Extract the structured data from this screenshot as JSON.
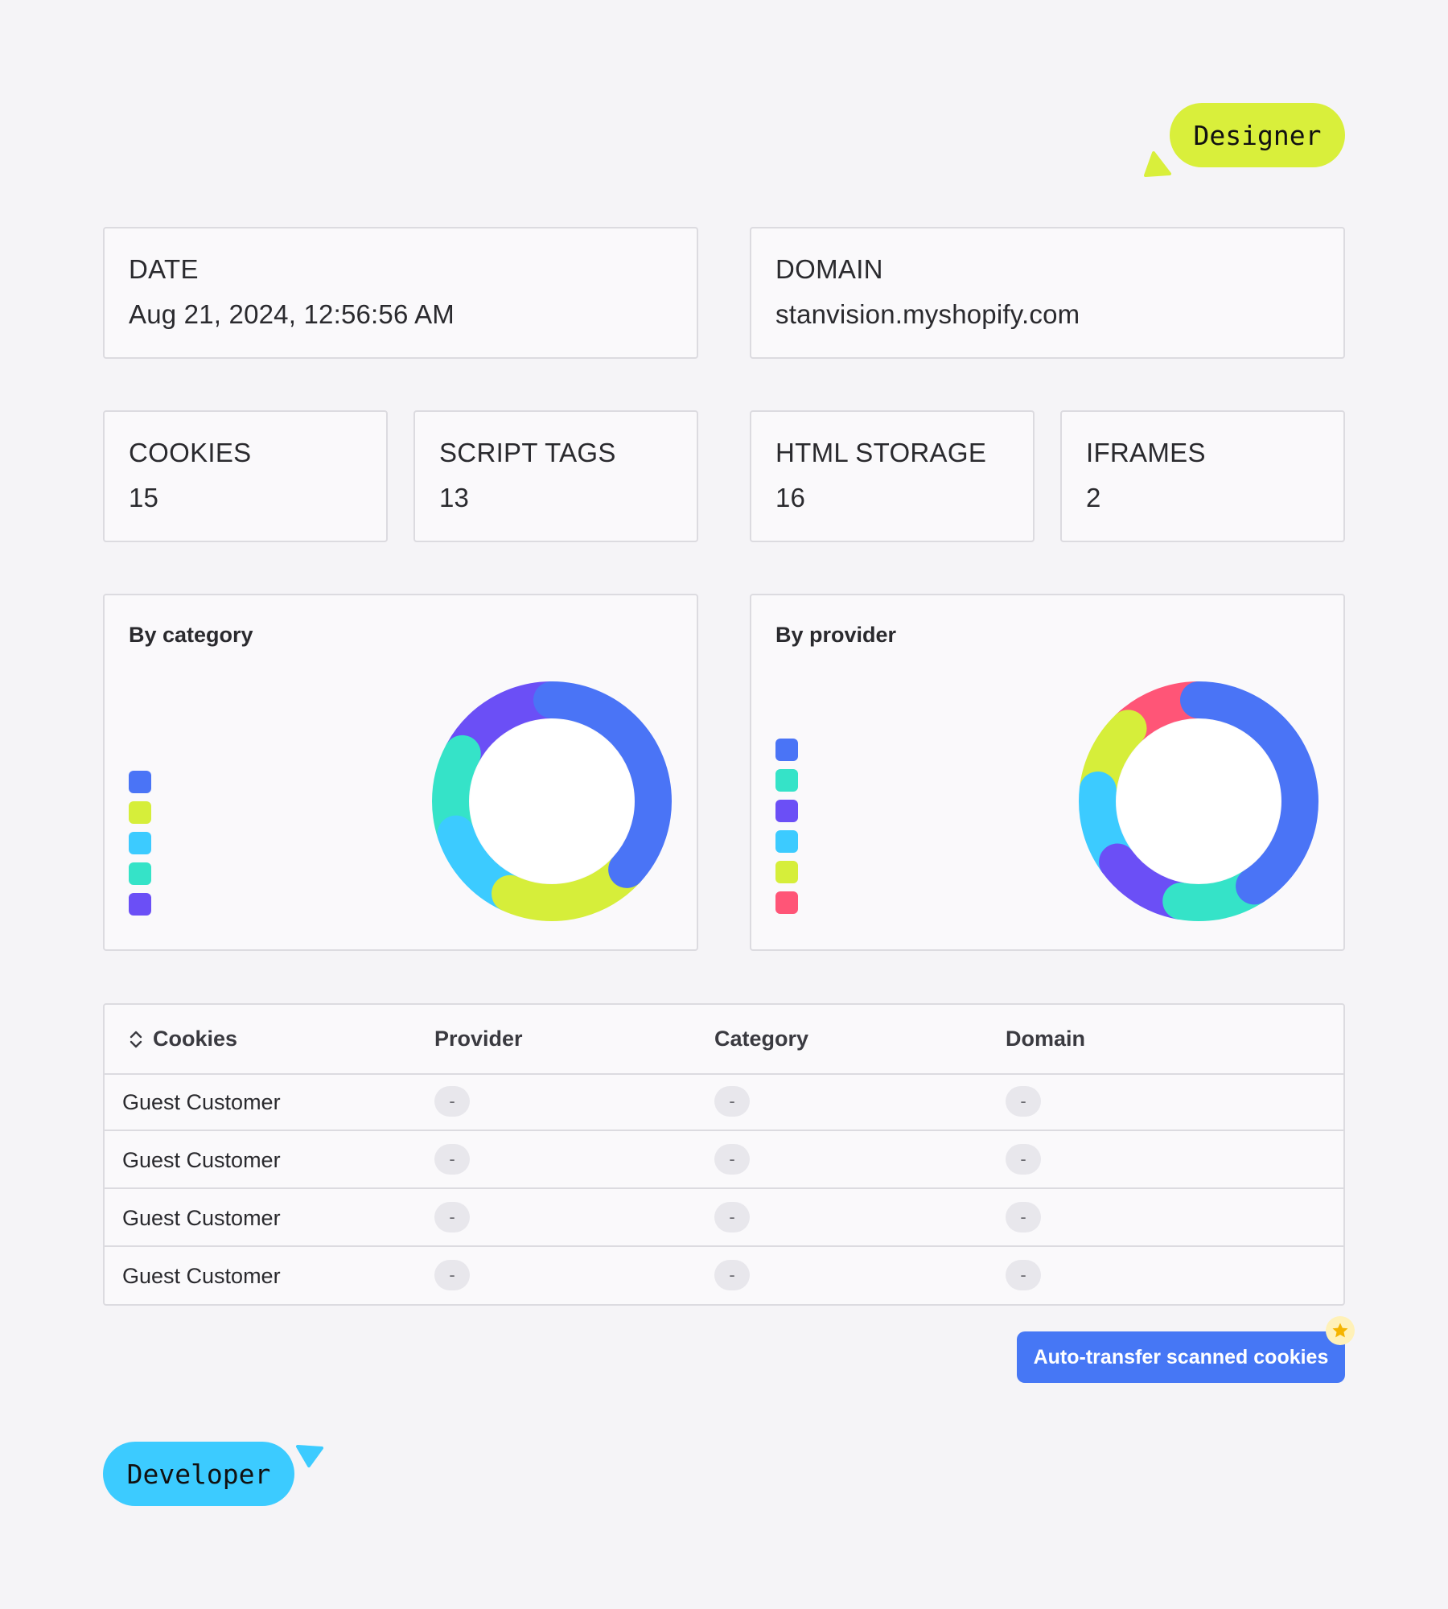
{
  "designer_tag": {
    "label": "Designer",
    "color": "#d9ef3b"
  },
  "developer_tag": {
    "label": "Developer",
    "color": "#3ccbff"
  },
  "summary": {
    "date": {
      "label": "DATE",
      "value": "Aug 21, 2024, 12:56:56 AM"
    },
    "domain": {
      "label": "DOMAIN",
      "value": "stanvision.myshopify.com"
    }
  },
  "stats": [
    {
      "label": "COOKIES",
      "value": "15"
    },
    {
      "label": "SCRIPT TAGS",
      "value": "13"
    },
    {
      "label": "HTML STORAGE",
      "value": "16"
    },
    {
      "label": "IFRAMES",
      "value": "2"
    }
  ],
  "charts": {
    "category": {
      "title": "By category",
      "legend_colors": [
        "#4a74f6",
        "#d6ee3a",
        "#3ccbff",
        "#35e3c8",
        "#6b4ff6"
      ]
    },
    "provider": {
      "title": "By provider",
      "legend_colors": [
        "#4a74f6",
        "#35e3c8",
        "#6b4ff6",
        "#3ccbff",
        "#d6ee3a",
        "#ff5577"
      ]
    }
  },
  "chart_data": [
    {
      "type": "pie",
      "title": "By category",
      "colors": [
        "#4a74f6",
        "#d6ee3a",
        "#3ccbff",
        "#35e3c8",
        "#6b4ff6"
      ],
      "values": [
        37,
        20,
        13,
        13,
        17
      ]
    },
    {
      "type": "pie",
      "title": "By provider",
      "colors": [
        "#4a74f6",
        "#35e3c8",
        "#6b4ff6",
        "#3ccbff",
        "#d6ee3a",
        "#ff5577"
      ],
      "values": [
        41,
        12,
        12,
        12,
        11,
        12
      ]
    }
  ],
  "table": {
    "headers": [
      "Cookies",
      "Provider",
      "Category",
      "Domain"
    ],
    "rows": [
      {
        "name": "Guest Customer",
        "provider": "-",
        "category": "-",
        "domain": "-"
      },
      {
        "name": "Guest Customer",
        "provider": "-",
        "category": "-",
        "domain": "-"
      },
      {
        "name": "Guest Customer",
        "provider": "-",
        "category": "-",
        "domain": "-"
      },
      {
        "name": "Guest Customer",
        "provider": "-",
        "category": "-",
        "domain": "-"
      }
    ]
  },
  "actions": {
    "auto_transfer_label": "Auto-transfer scanned cookies",
    "star_icon": "star-icon"
  }
}
